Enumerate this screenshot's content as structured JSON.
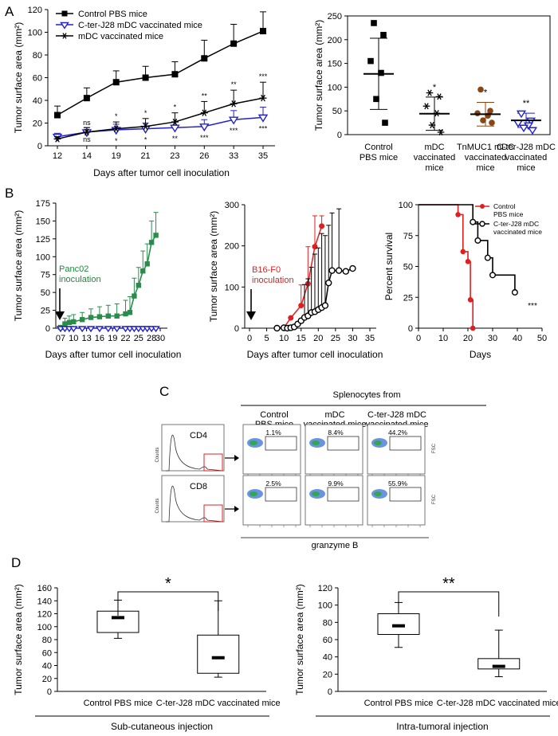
{
  "panels": {
    "A": "A",
    "B": "B",
    "C": "C",
    "D": "D"
  },
  "chart_data": [
    {
      "id": "A1",
      "type": "line",
      "ylabel": "Tumor surface area (mm²)",
      "xlabel": "Days after tumor cell inoculation",
      "categories": [
        "12",
        "14",
        "19",
        "21",
        "23",
        "26",
        "33",
        "35"
      ],
      "ylim": [
        0,
        120
      ],
      "yticks": [
        "0",
        "20",
        "40",
        "60",
        "80",
        "100",
        "120"
      ],
      "series": [
        {
          "name": "Control PBS mice",
          "color": "#000000",
          "marker": "square",
          "values": [
            27,
            42,
            56,
            60,
            63,
            77,
            90,
            101
          ],
          "err": [
            8,
            9,
            10,
            10,
            11,
            16,
            17,
            17
          ],
          "stars": [
            "",
            "",
            "",
            "",
            "",
            "",
            "",
            ""
          ]
        },
        {
          "name": "C-ter-J28 mDC vaccinated mice",
          "color": "#2222cc",
          "marker": "triangle",
          "values": [
            8,
            12,
            14,
            15,
            16,
            17,
            23,
            25
          ],
          "err": [
            3,
            4,
            5,
            5,
            5,
            6,
            8,
            9
          ],
          "stars": [
            "",
            "ns",
            "*",
            "*",
            "**",
            "***",
            "***",
            "***"
          ]
        },
        {
          "name": "mDC vaccinated mice",
          "color": "#000000",
          "marker": "asterisk",
          "values": [
            6,
            12,
            15,
            17,
            21,
            29,
            37,
            42
          ],
          "err": [
            2,
            4,
            6,
            7,
            8,
            10,
            12,
            14
          ],
          "stars": [
            "",
            "ns",
            "*",
            "*",
            "*",
            "**",
            "**",
            "***"
          ]
        }
      ]
    },
    {
      "id": "A2",
      "type": "scatter",
      "ylabel": "Tumor surface area (mm²)",
      "ylim": [
        0,
        250
      ],
      "yticks": [
        "0",
        "50",
        "100",
        "150",
        "200",
        "250"
      ],
      "groups": [
        {
          "label": [
            "Control",
            "PBS mice"
          ],
          "color": "#000000",
          "marker": "square",
          "points": [
            235,
            210,
            155,
            130,
            75,
            25
          ],
          "mean": 128,
          "sd": 75,
          "stars": ""
        },
        {
          "label": [
            "mDC",
            "vaccinated",
            "mice"
          ],
          "color": "#000000",
          "marker": "asterisk",
          "points": [
            88,
            80,
            60,
            45,
            20,
            5
          ],
          "mean": 44,
          "sd": 35,
          "stars": "*"
        },
        {
          "label": [
            "TnMUC1 mDC",
            "vaccinated",
            "mice"
          ],
          "color": "#8b4513",
          "marker": "circle",
          "points": [
            95,
            50,
            45,
            40,
            30,
            25
          ],
          "mean": 43,
          "sd": 25,
          "stars": "*"
        },
        {
          "label": [
            "C-ter-J28 mDC",
            "vaccinated",
            "mice"
          ],
          "color": "#2222cc",
          "marker": "triangle",
          "points": [
            45,
            30,
            25,
            20,
            15,
            10
          ],
          "mean": 30,
          "sd": 15,
          "stars": "**"
        }
      ]
    },
    {
      "id": "B1",
      "type": "line",
      "ylabel": "Tumor surface area (mm²)",
      "xlabel": "Days after tumor cell inoculation",
      "xlim": [
        7,
        30
      ],
      "xticks": [
        "07",
        "10",
        "13",
        "16",
        "19",
        "22",
        "25",
        "28",
        "30"
      ],
      "ylim": [
        0,
        175
      ],
      "yticks": [
        "0",
        "25",
        "50",
        "75",
        "100",
        "125",
        "150",
        "175"
      ],
      "annotation": [
        "Panc02",
        "inoculation"
      ],
      "annotation_color": "#1e8a3a",
      "series": [
        {
          "name": "Control",
          "color": "#2a8c4a",
          "marker": "square",
          "x": [
            7,
            8,
            9,
            10,
            12,
            14,
            16,
            18,
            20,
            22,
            23,
            24,
            25,
            26,
            27,
            28,
            29
          ],
          "values": [
            1,
            6,
            8,
            9,
            12,
            15,
            16,
            17,
            17,
            20,
            22,
            45,
            60,
            80,
            90,
            120,
            130
          ],
          "err": [
            3,
            8,
            9,
            10,
            10,
            12,
            14,
            15,
            17,
            19,
            22,
            25,
            25,
            28,
            28,
            30,
            32
          ]
        },
        {
          "name": "Vaccinated",
          "color": "#2222cc",
          "marker": "triangle",
          "x": [
            7,
            8,
            9,
            10,
            12,
            14,
            16,
            18,
            20,
            22,
            23,
            24,
            25,
            26,
            27,
            28,
            29
          ],
          "values": [
            0,
            0,
            0,
            0,
            0,
            0,
            0,
            0,
            0,
            0,
            0,
            0,
            0,
            0,
            0,
            0,
            0
          ],
          "err": []
        }
      ]
    },
    {
      "id": "B2",
      "type": "line",
      "ylabel": "Tumor surface area (mm²)",
      "xlabel": "Days after tumor cell inoculation",
      "xlim": [
        0,
        35
      ],
      "xticks": [
        "0",
        "5",
        "10",
        "15",
        "20",
        "25",
        "30",
        "35"
      ],
      "ylim": [
        0,
        300
      ],
      "yticks": [
        "0",
        "100",
        "200",
        "300"
      ],
      "annotation": [
        "B16-F0",
        "inoculation"
      ],
      "annotation_color": "#e02020",
      "series": [
        {
          "name": "Control",
          "color": "#e02020",
          "marker": "circle-filled",
          "x": [
            10,
            12,
            15,
            17,
            19,
            21
          ],
          "values": [
            1,
            25,
            55,
            108,
            198,
            248
          ],
          "err": [
            0,
            0,
            50,
            90,
            75,
            25
          ]
        },
        {
          "name": "Vaccinated",
          "color": "#000000",
          "marker": "circle-open",
          "x": [
            8,
            10,
            11,
            12,
            13,
            14,
            15,
            16,
            17,
            18,
            19,
            20,
            21,
            22,
            23,
            24,
            26,
            28,
            30
          ],
          "values": [
            0,
            1,
            0,
            1,
            3,
            10,
            18,
            26,
            30,
            38,
            40,
            45,
            50,
            55,
            110,
            140,
            140,
            138,
            145
          ],
          "err": [
            0,
            0,
            0,
            0,
            0,
            0,
            0,
            80,
            90,
            110,
            140,
            150,
            180,
            170,
            140,
            140,
            150,
            0,
            0
          ]
        }
      ]
    },
    {
      "id": "B3",
      "type": "line",
      "ylabel": "Percent survival",
      "xlabel": "Days",
      "xlim": [
        0,
        50
      ],
      "xticks": [
        "0",
        "10",
        "20",
        "30",
        "40",
        "50"
      ],
      "ylim": [
        0,
        100
      ],
      "yticks": [
        "0",
        "25",
        "50",
        "75",
        "100"
      ],
      "stars": "***",
      "series": [
        {
          "name": "Control PBS mice",
          "legend": [
            "Control",
            "PBS mice"
          ],
          "color": "#e02020",
          "marker": "circle-filled",
          "steps": [
            [
              0,
              100
            ],
            [
              16,
              100
            ],
            [
              16,
              92
            ],
            [
              18,
              92
            ],
            [
              18,
              62
            ],
            [
              20,
              62
            ],
            [
              20,
              54
            ],
            [
              21,
              54
            ],
            [
              21,
              23
            ],
            [
              22,
              23
            ],
            [
              22,
              0
            ]
          ],
          "markers": [
            [
              16,
              92
            ],
            [
              18,
              62
            ],
            [
              20,
              54
            ],
            [
              21,
              23
            ],
            [
              22,
              0
            ]
          ]
        },
        {
          "name": "C-ter-J28 mDC vaccinated mice",
          "legend": [
            "C-ter-J28 mDC",
            "vaccinated mice"
          ],
          "color": "#000000",
          "marker": "circle-open",
          "steps": [
            [
              0,
              100
            ],
            [
              22,
              100
            ],
            [
              22,
              86
            ],
            [
              24,
              86
            ],
            [
              24,
              71
            ],
            [
              28,
              71
            ],
            [
              28,
              57
            ],
            [
              30,
              57
            ],
            [
              30,
              43
            ],
            [
              39,
              43
            ],
            [
              39,
              29
            ],
            [
              40,
              29
            ]
          ],
          "markers": [
            [
              22,
              86
            ],
            [
              24,
              71
            ],
            [
              28,
              57
            ],
            [
              30,
              43
            ],
            [
              39,
              29
            ]
          ]
        }
      ]
    },
    {
      "id": "C",
      "type": "table",
      "title": "Splenocytes from",
      "columns": [
        [
          "Control",
          "PBS mice"
        ],
        [
          "mDC",
          "vaccinated mice"
        ],
        [
          "C-ter-J28 mDC",
          "vaccinated mice"
        ]
      ],
      "rows": [
        {
          "marker": "CD4",
          "values": [
            "1.1%",
            "8.4%",
            "44.2%"
          ]
        },
        {
          "marker": "CD8",
          "values": [
            "2.5%",
            "9.9%",
            "55.9%"
          ]
        }
      ],
      "hist_ylabel": "Counts",
      "side_label": "FSC",
      "xlabel": "granzyme B"
    },
    {
      "id": "D1",
      "type": "box",
      "ylabel": "Tumor surface area (mm²)",
      "ylim": [
        0,
        160
      ],
      "yticks": [
        "0",
        "20",
        "40",
        "60",
        "80",
        "100",
        "120",
        "140",
        "160"
      ],
      "categories": [
        "Control PBS mice",
        "C-ter-J28 mDC vaccinated mice"
      ],
      "boxes": [
        {
          "min": 82,
          "q1": 91,
          "median": 114,
          "q3": 124,
          "max": 141
        },
        {
          "min": 22,
          "q1": 28,
          "median": 52,
          "q3": 87,
          "max": 140
        }
      ],
      "stars": "*",
      "caption": "Sub-cutaneous injection"
    },
    {
      "id": "D2",
      "type": "box",
      "ylabel": "Tumor surface area (mm²)",
      "ylim": [
        0,
        120
      ],
      "yticks": [
        "0",
        "20",
        "40",
        "60",
        "80",
        "100",
        "120"
      ],
      "categories": [
        "Control PBS mice",
        "C-ter-J28 mDC vaccinated mice"
      ],
      "boxes": [
        {
          "min": 51,
          "q1": 66,
          "median": 76,
          "q3": 90,
          "max": 103
        },
        {
          "min": 17,
          "q1": 26,
          "median": 29,
          "q3": 38,
          "max": 71
        }
      ],
      "stars": "**",
      "caption": "Intra-tumoral injection"
    }
  ]
}
